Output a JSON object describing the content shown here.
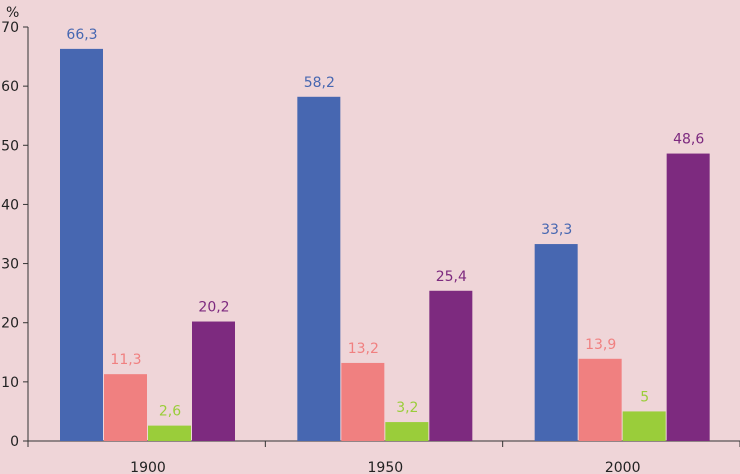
{
  "chart_data": {
    "type": "bar",
    "title": "",
    "xlabel": "",
    "ylabel": "%",
    "ylim": [
      0,
      70
    ],
    "yticks": [
      0,
      10,
      20,
      30,
      40,
      50,
      60,
      70
    ],
    "grid": false,
    "legend": "none",
    "categories": [
      "1900",
      "1950",
      "2000"
    ],
    "series": [
      {
        "color": "#4767b1",
        "label_color": "#4767b1",
        "values": [
          66.3,
          58.2,
          33.3
        ],
        "labels": [
          "66,3",
          "58,2",
          "33,3"
        ]
      },
      {
        "color": "#f08080",
        "label_color": "#f08080",
        "values": [
          11.3,
          13.2,
          13.9
        ],
        "labels": [
          "11,3",
          "13,2",
          "13,9"
        ]
      },
      {
        "color": "#9acd3a",
        "label_color": "#9acd3a",
        "values": [
          2.6,
          3.2,
          5
        ],
        "labels": [
          "2,6",
          "3,2",
          "5"
        ]
      },
      {
        "color": "#7d2a7f",
        "label_color": "#7d2a7f",
        "values": [
          20.2,
          25.4,
          48.6
        ],
        "labels": [
          "20,2",
          "25,4",
          "48,6"
        ]
      }
    ]
  }
}
